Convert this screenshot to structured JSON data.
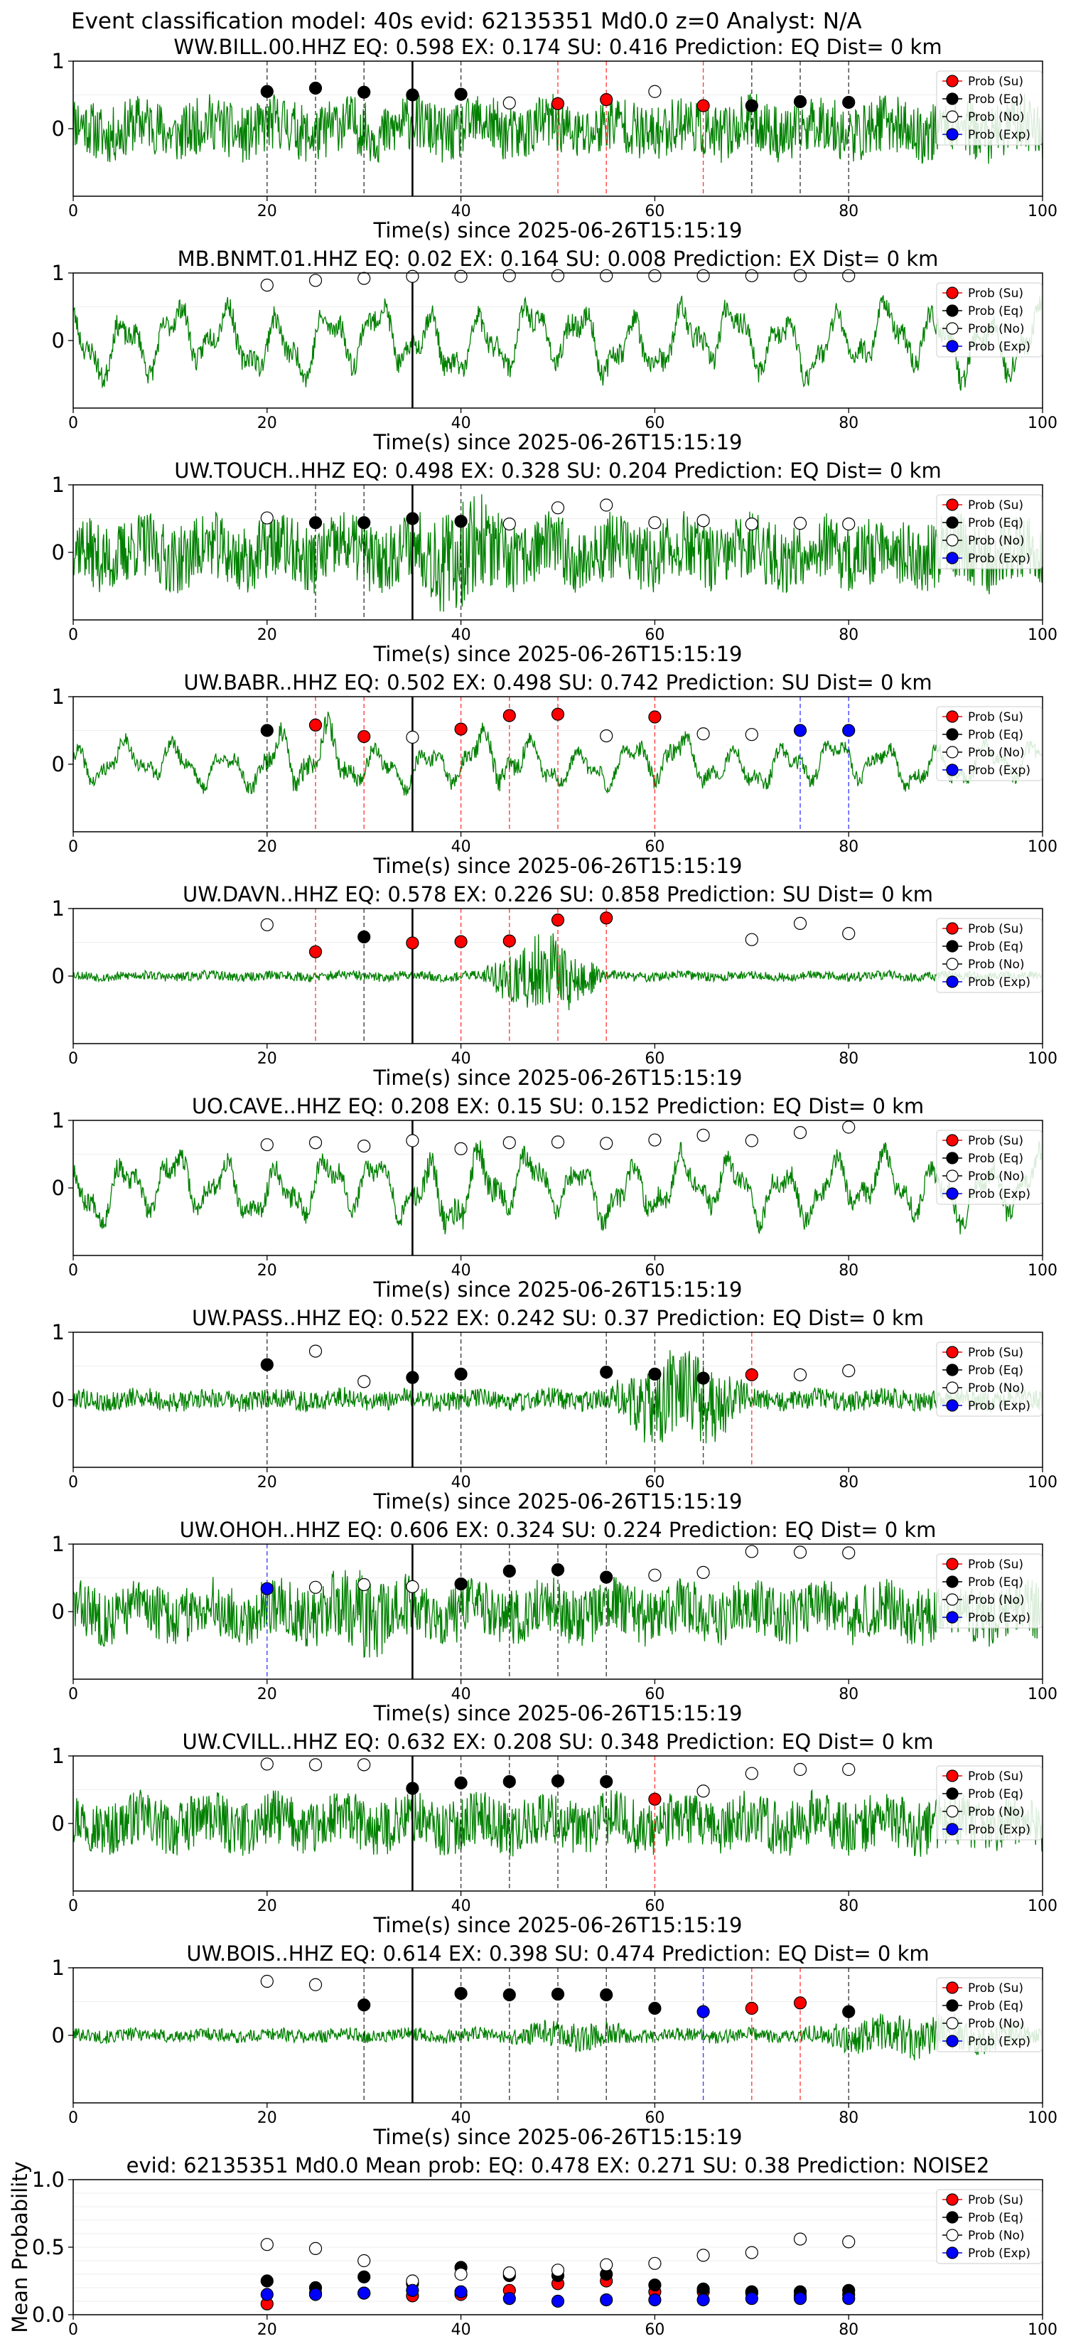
{
  "header": "Event classification model: 40s evid: 62135351 Md0.0 z=0 Analyst: N/A",
  "xlabel": "Time(s) since 2025-06-26T15:15:19",
  "legend": [
    "Prob (Su)",
    "Prob (Eq)",
    "Prob (No)",
    "Prob (Exp)"
  ],
  "colors": {
    "su": "#ff0000",
    "eq": "#000000",
    "no": "#ffffff",
    "exp": "#0000ff",
    "wave": "#008000"
  },
  "chart_data": [
    {
      "type": "line",
      "title": "WW.BILL.00.HHZ    EQ: 0.598   EX: 0.174   SU: 0.416    Prediction: EQ     Dist= 0 km",
      "xlim": [
        0,
        100
      ],
      "xticks": [
        0,
        20,
        40,
        60,
        80,
        100
      ],
      "yticks": [
        0,
        1
      ],
      "ylim": [
        -1,
        1
      ],
      "wave": {
        "amp": 0.42,
        "seed": 11,
        "style": "noise",
        "bursts": []
      },
      "onset": 35,
      "points": [
        {
          "x": 20,
          "y": 0.55,
          "c": "eq"
        },
        {
          "x": 25,
          "y": 0.6,
          "c": "eq"
        },
        {
          "x": 30,
          "y": 0.54,
          "c": "eq"
        },
        {
          "x": 35,
          "y": 0.5,
          "c": "eq"
        },
        {
          "x": 40,
          "y": 0.51,
          "c": "eq"
        },
        {
          "x": 45,
          "y": 0.38,
          "c": "no"
        },
        {
          "x": 50,
          "y": 0.37,
          "c": "su"
        },
        {
          "x": 55,
          "y": 0.43,
          "c": "su"
        },
        {
          "x": 60,
          "y": 0.55,
          "c": "no"
        },
        {
          "x": 65,
          "y": 0.34,
          "c": "su"
        },
        {
          "x": 70,
          "y": 0.34,
          "c": "eq"
        },
        {
          "x": 75,
          "y": 0.4,
          "c": "eq"
        },
        {
          "x": 80,
          "y": 0.39,
          "c": "eq"
        }
      ]
    },
    {
      "type": "line",
      "title": "MB.BNMT.01.HHZ    EQ: 0.02   EX: 0.164   SU: 0.008    Prediction: EX     Dist= 0 km",
      "xlim": [
        0,
        100
      ],
      "xticks": [
        0,
        20,
        40,
        60,
        80,
        100
      ],
      "yticks": [
        0,
        1
      ],
      "ylim": [
        -1,
        1
      ],
      "wave": {
        "amp": 0.55,
        "seed": 23,
        "style": "osc",
        "bursts": []
      },
      "onset": 35,
      "points": [
        {
          "x": 20,
          "y": 0.82,
          "c": "no"
        },
        {
          "x": 25,
          "y": 0.89,
          "c": "no"
        },
        {
          "x": 30,
          "y": 0.92,
          "c": "no"
        },
        {
          "x": 35,
          "y": 0.95,
          "c": "no"
        },
        {
          "x": 40,
          "y": 0.95,
          "c": "no"
        },
        {
          "x": 45,
          "y": 0.96,
          "c": "no"
        },
        {
          "x": 50,
          "y": 0.96,
          "c": "no"
        },
        {
          "x": 55,
          "y": 0.96,
          "c": "no"
        },
        {
          "x": 60,
          "y": 0.96,
          "c": "no"
        },
        {
          "x": 65,
          "y": 0.96,
          "c": "no"
        },
        {
          "x": 70,
          "y": 0.96,
          "c": "no"
        },
        {
          "x": 75,
          "y": 0.96,
          "c": "no"
        },
        {
          "x": 80,
          "y": 0.96,
          "c": "no"
        }
      ]
    },
    {
      "type": "line",
      "title": "UW.TOUCH..HHZ    EQ: 0.498   EX: 0.328   SU: 0.204    Prediction: EQ     Dist= 0 km",
      "xlim": [
        0,
        100
      ],
      "xticks": [
        0,
        20,
        40,
        60,
        80,
        100
      ],
      "yticks": [
        0,
        1
      ],
      "ylim": [
        -1,
        1
      ],
      "wave": {
        "amp": 0.5,
        "seed": 37,
        "style": "noise",
        "bursts": [
          [
            35,
            45,
            1.6
          ]
        ]
      },
      "onset": 35,
      "points": [
        {
          "x": 20,
          "y": 0.51,
          "c": "no"
        },
        {
          "x": 25,
          "y": 0.44,
          "c": "eq"
        },
        {
          "x": 30,
          "y": 0.44,
          "c": "eq"
        },
        {
          "x": 35,
          "y": 0.5,
          "c": "eq"
        },
        {
          "x": 40,
          "y": 0.46,
          "c": "eq"
        },
        {
          "x": 45,
          "y": 0.42,
          "c": "no"
        },
        {
          "x": 50,
          "y": 0.66,
          "c": "no"
        },
        {
          "x": 55,
          "y": 0.7,
          "c": "no"
        },
        {
          "x": 60,
          "y": 0.44,
          "c": "no"
        },
        {
          "x": 65,
          "y": 0.47,
          "c": "no"
        },
        {
          "x": 70,
          "y": 0.42,
          "c": "no"
        },
        {
          "x": 75,
          "y": 0.43,
          "c": "no"
        },
        {
          "x": 80,
          "y": 0.42,
          "c": "no"
        }
      ]
    },
    {
      "type": "line",
      "title": "UW.BABR..HHZ    EQ: 0.502   EX: 0.498   SU: 0.742    Prediction: SU     Dist= 0 km",
      "xlim": [
        0,
        100
      ],
      "xticks": [
        0,
        20,
        40,
        60,
        80,
        100
      ],
      "yticks": [
        0,
        1
      ],
      "ylim": [
        -1,
        1
      ],
      "wave": {
        "amp": 0.35,
        "seed": 41,
        "style": "osc",
        "bursts": [
          [
            18,
            30,
            1.7
          ],
          [
            40,
            48,
            1.5
          ],
          [
            58,
            66,
            1.3
          ]
        ]
      },
      "onset": 35,
      "points": [
        {
          "x": 20,
          "y": 0.5,
          "c": "eq"
        },
        {
          "x": 25,
          "y": 0.58,
          "c": "su"
        },
        {
          "x": 30,
          "y": 0.41,
          "c": "su"
        },
        {
          "x": 35,
          "y": 0.4,
          "c": "no"
        },
        {
          "x": 40,
          "y": 0.52,
          "c": "su"
        },
        {
          "x": 45,
          "y": 0.72,
          "c": "su"
        },
        {
          "x": 50,
          "y": 0.74,
          "c": "su"
        },
        {
          "x": 55,
          "y": 0.42,
          "c": "no"
        },
        {
          "x": 60,
          "y": 0.7,
          "c": "su"
        },
        {
          "x": 65,
          "y": 0.45,
          "c": "no"
        },
        {
          "x": 70,
          "y": 0.44,
          "c": "no"
        },
        {
          "x": 75,
          "y": 0.5,
          "c": "exp"
        },
        {
          "x": 80,
          "y": 0.5,
          "c": "exp"
        }
      ]
    },
    {
      "type": "line",
      "title": "UW.DAVN..HHZ    EQ: 0.578   EX: 0.226   SU: 0.858    Prediction: SU     Dist= 0 km",
      "xlim": [
        0,
        100
      ],
      "xticks": [
        0,
        20,
        40,
        60,
        80,
        100
      ],
      "yticks": [
        0,
        1
      ],
      "ylim": [
        -1,
        1
      ],
      "wave": {
        "amp": 0.07,
        "seed": 53,
        "style": "noise",
        "bursts": [
          [
            42,
            55,
            8
          ]
        ]
      },
      "onset": 35,
      "points": [
        {
          "x": 20,
          "y": 0.76,
          "c": "no"
        },
        {
          "x": 25,
          "y": 0.36,
          "c": "su"
        },
        {
          "x": 30,
          "y": 0.58,
          "c": "eq"
        },
        {
          "x": 35,
          "y": 0.49,
          "c": "su"
        },
        {
          "x": 40,
          "y": 0.51,
          "c": "su"
        },
        {
          "x": 45,
          "y": 0.52,
          "c": "su"
        },
        {
          "x": 50,
          "y": 0.83,
          "c": "su"
        },
        {
          "x": 55,
          "y": 0.86,
          "c": "su"
        },
        {
          "x": 70,
          "y": 0.54,
          "c": "no"
        },
        {
          "x": 75,
          "y": 0.78,
          "c": "no"
        },
        {
          "x": 80,
          "y": 0.63,
          "c": "no"
        }
      ]
    },
    {
      "type": "line",
      "title": "UO.CAVE..HHZ    EQ: 0.208   EX: 0.15   SU: 0.152    Prediction: EQ     Dist= 0 km",
      "xlim": [
        0,
        100
      ],
      "xticks": [
        0,
        20,
        40,
        60,
        80,
        100
      ],
      "yticks": [
        0,
        1
      ],
      "ylim": [
        -1,
        1
      ],
      "wave": {
        "amp": 0.5,
        "seed": 67,
        "style": "osc",
        "bursts": [
          [
            35,
            45,
            1.4
          ]
        ]
      },
      "onset": 35,
      "points": [
        {
          "x": 20,
          "y": 0.64,
          "c": "no"
        },
        {
          "x": 25,
          "y": 0.67,
          "c": "no"
        },
        {
          "x": 30,
          "y": 0.62,
          "c": "no"
        },
        {
          "x": 35,
          "y": 0.7,
          "c": "no"
        },
        {
          "x": 40,
          "y": 0.58,
          "c": "no"
        },
        {
          "x": 45,
          "y": 0.67,
          "c": "no"
        },
        {
          "x": 50,
          "y": 0.68,
          "c": "no"
        },
        {
          "x": 55,
          "y": 0.66,
          "c": "no"
        },
        {
          "x": 60,
          "y": 0.71,
          "c": "no"
        },
        {
          "x": 65,
          "y": 0.78,
          "c": "no"
        },
        {
          "x": 70,
          "y": 0.7,
          "c": "no"
        },
        {
          "x": 75,
          "y": 0.82,
          "c": "no"
        },
        {
          "x": 80,
          "y": 0.9,
          "c": "no"
        }
      ]
    },
    {
      "type": "line",
      "title": "UW.PASS..HHZ    EQ: 0.522   EX: 0.242   SU: 0.37    Prediction: EQ     Dist= 0 km",
      "xlim": [
        0,
        100
      ],
      "xticks": [
        0,
        20,
        40,
        60,
        80,
        100
      ],
      "yticks": [
        0,
        1
      ],
      "ylim": [
        -1,
        1
      ],
      "wave": {
        "amp": 0.15,
        "seed": 79,
        "style": "noise",
        "bursts": [
          [
            55,
            70,
            4.5
          ]
        ]
      },
      "onset": 35,
      "points": [
        {
          "x": 20,
          "y": 0.52,
          "c": "eq"
        },
        {
          "x": 25,
          "y": 0.72,
          "c": "no"
        },
        {
          "x": 30,
          "y": 0.27,
          "c": "no"
        },
        {
          "x": 35,
          "y": 0.33,
          "c": "eq"
        },
        {
          "x": 40,
          "y": 0.38,
          "c": "eq"
        },
        {
          "x": 55,
          "y": 0.41,
          "c": "eq"
        },
        {
          "x": 60,
          "y": 0.38,
          "c": "eq"
        },
        {
          "x": 65,
          "y": 0.32,
          "c": "eq"
        },
        {
          "x": 70,
          "y": 0.37,
          "c": "su"
        },
        {
          "x": 75,
          "y": 0.37,
          "c": "no"
        },
        {
          "x": 80,
          "y": 0.43,
          "c": "no"
        }
      ]
    },
    {
      "type": "line",
      "title": "UW.OHOH..HHZ    EQ: 0.606   EX: 0.324   SU: 0.224    Prediction: EQ     Dist= 0 km",
      "xlim": [
        0,
        100
      ],
      "xticks": [
        0,
        20,
        40,
        60,
        80,
        100
      ],
      "yticks": [
        0,
        1
      ],
      "ylim": [
        -1,
        1
      ],
      "wave": {
        "amp": 0.42,
        "seed": 83,
        "style": "noise",
        "bursts": [
          [
            25,
            35,
            1.5
          ]
        ]
      },
      "onset": 35,
      "points": [
        {
          "x": 20,
          "y": 0.34,
          "c": "exp"
        },
        {
          "x": 25,
          "y": 0.36,
          "c": "no"
        },
        {
          "x": 30,
          "y": 0.4,
          "c": "no"
        },
        {
          "x": 35,
          "y": 0.37,
          "c": "no"
        },
        {
          "x": 40,
          "y": 0.41,
          "c": "eq"
        },
        {
          "x": 45,
          "y": 0.6,
          "c": "eq"
        },
        {
          "x": 50,
          "y": 0.62,
          "c": "eq"
        },
        {
          "x": 55,
          "y": 0.51,
          "c": "eq"
        },
        {
          "x": 60,
          "y": 0.54,
          "c": "no"
        },
        {
          "x": 65,
          "y": 0.58,
          "c": "no"
        },
        {
          "x": 70,
          "y": 0.89,
          "c": "no"
        },
        {
          "x": 75,
          "y": 0.88,
          "c": "no"
        },
        {
          "x": 80,
          "y": 0.87,
          "c": "no"
        }
      ]
    },
    {
      "type": "line",
      "title": "UW.CVILL..HHZ    EQ: 0.632   EX: 0.208   SU: 0.348    Prediction: EQ     Dist= 0 km",
      "xlim": [
        0,
        100
      ],
      "xticks": [
        0,
        20,
        40,
        60,
        80,
        100
      ],
      "yticks": [
        0,
        1
      ],
      "ylim": [
        -1,
        1
      ],
      "wave": {
        "amp": 0.4,
        "seed": 97,
        "style": "noise",
        "bursts": []
      },
      "onset": 35,
      "points": [
        {
          "x": 20,
          "y": 0.88,
          "c": "no"
        },
        {
          "x": 25,
          "y": 0.87,
          "c": "no"
        },
        {
          "x": 30,
          "y": 0.87,
          "c": "no"
        },
        {
          "x": 35,
          "y": 0.52,
          "c": "eq"
        },
        {
          "x": 40,
          "y": 0.6,
          "c": "eq"
        },
        {
          "x": 45,
          "y": 0.62,
          "c": "eq"
        },
        {
          "x": 50,
          "y": 0.63,
          "c": "eq"
        },
        {
          "x": 55,
          "y": 0.62,
          "c": "eq"
        },
        {
          "x": 60,
          "y": 0.36,
          "c": "su"
        },
        {
          "x": 65,
          "y": 0.48,
          "c": "no"
        },
        {
          "x": 70,
          "y": 0.74,
          "c": "no"
        },
        {
          "x": 75,
          "y": 0.8,
          "c": "no"
        },
        {
          "x": 80,
          "y": 0.8,
          "c": "no"
        }
      ]
    },
    {
      "type": "line",
      "title": "UW.BOIS..HHZ    EQ: 0.614   EX: 0.398   SU: 0.474    Prediction: EQ     Dist= 0 km",
      "xlim": [
        0,
        100
      ],
      "xticks": [
        0,
        20,
        40,
        60,
        80,
        100
      ],
      "yticks": [
        0,
        1
      ],
      "ylim": [
        -1,
        1
      ],
      "wave": {
        "amp": 0.1,
        "seed": 101,
        "style": "noise",
        "bursts": [
          [
            45,
            58,
            2.2
          ],
          [
            75,
            100,
            3.0
          ]
        ]
      },
      "onset": 35,
      "points": [
        {
          "x": 20,
          "y": 0.8,
          "c": "no"
        },
        {
          "x": 25,
          "y": 0.75,
          "c": "no"
        },
        {
          "x": 30,
          "y": 0.45,
          "c": "eq"
        },
        {
          "x": 40,
          "y": 0.62,
          "c": "eq"
        },
        {
          "x": 45,
          "y": 0.6,
          "c": "eq"
        },
        {
          "x": 50,
          "y": 0.61,
          "c": "eq"
        },
        {
          "x": 55,
          "y": 0.6,
          "c": "eq"
        },
        {
          "x": 60,
          "y": 0.4,
          "c": "eq"
        },
        {
          "x": 65,
          "y": 0.35,
          "c": "exp"
        },
        {
          "x": 70,
          "y": 0.4,
          "c": "su"
        },
        {
          "x": 75,
          "y": 0.48,
          "c": "su"
        },
        {
          "x": 80,
          "y": 0.35,
          "c": "eq"
        }
      ]
    },
    {
      "type": "scatter",
      "title": "evid: 62135351  Md0.0   Mean prob:   EQ: 0.478  EX: 0.271  SU: 0.38   Prediction: NOISE2",
      "ylabel": "Mean Probability",
      "xlim": [
        0,
        100
      ],
      "xticks": [
        0,
        20,
        40,
        60,
        80,
        100
      ],
      "ylim": [
        0,
        1
      ],
      "yticks": [
        "0.0",
        "0.5",
        "1.0"
      ],
      "ytick_values": [
        0,
        0.5,
        1.0
      ],
      "x": [
        20,
        25,
        30,
        35,
        40,
        45,
        50,
        55,
        60,
        65,
        70,
        75,
        80
      ],
      "series": [
        {
          "name": "Prob (Su)",
          "key": "su",
          "values": [
            0.08,
            0.16,
            0.16,
            0.14,
            0.15,
            0.18,
            0.23,
            0.25,
            0.17,
            0.17,
            0.16,
            0.14,
            0.15
          ]
        },
        {
          "name": "Prob (Eq)",
          "key": "eq",
          "values": [
            0.25,
            0.2,
            0.28,
            0.23,
            0.35,
            0.29,
            0.29,
            0.3,
            0.22,
            0.19,
            0.17,
            0.17,
            0.18
          ]
        },
        {
          "name": "Prob (No)",
          "key": "no",
          "values": [
            0.52,
            0.49,
            0.4,
            0.25,
            0.3,
            0.31,
            0.33,
            0.37,
            0.38,
            0.44,
            0.46,
            0.56,
            0.54
          ]
        },
        {
          "name": "Prob (Exp)",
          "key": "exp",
          "values": [
            0.15,
            0.15,
            0.16,
            0.18,
            0.17,
            0.12,
            0.1,
            0.11,
            0.11,
            0.11,
            0.12,
            0.12,
            0.12
          ]
        }
      ]
    }
  ]
}
